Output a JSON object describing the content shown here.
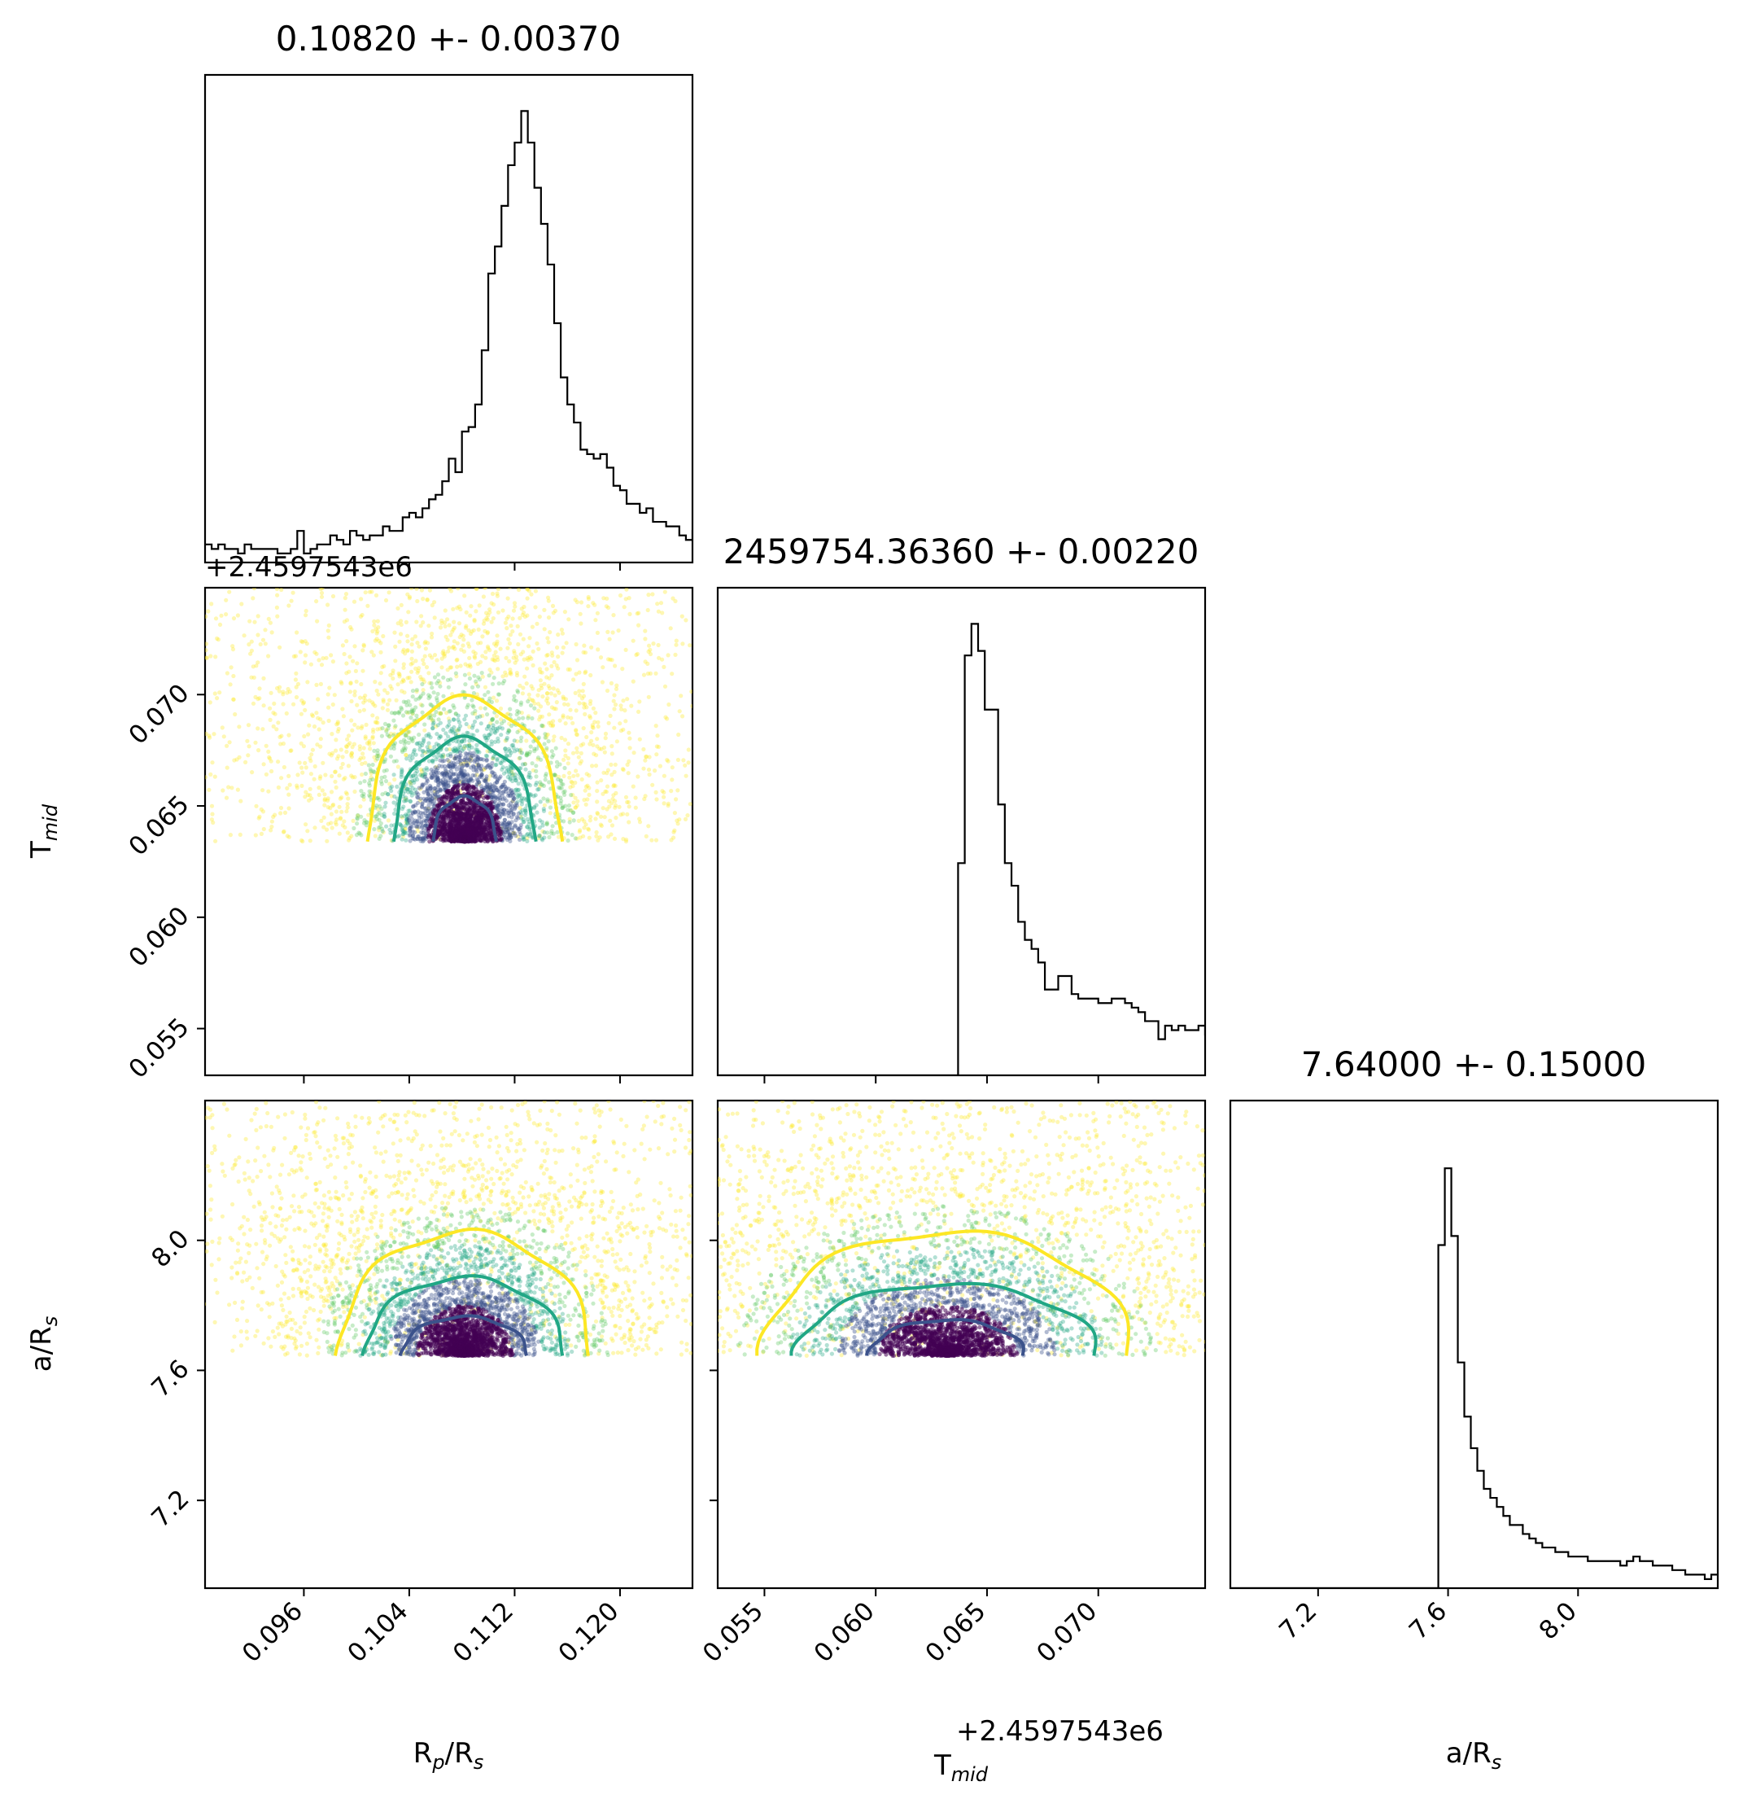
{
  "figure": {
    "type": "corner_plot",
    "parameters": [
      {
        "key": "rp",
        "label_main": "R",
        "label_sub": "p",
        "label_tail": "/R",
        "label_sub2": "s",
        "range": [
          0.0885,
          0.1255
        ],
        "ticks": [
          "0.096",
          "0.104",
          "0.112",
          "0.120"
        ],
        "tick_values": [
          0.096,
          0.104,
          0.112,
          0.12
        ]
      },
      {
        "key": "tmid",
        "label_main": "T",
        "label_sub": "mid",
        "label_tail": "",
        "label_sub2": "",
        "range": [
          0.0529,
          0.0748
        ],
        "ticks": [
          "0.055",
          "0.060",
          "0.065",
          "0.070"
        ],
        "tick_values": [
          0.055,
          0.06,
          0.065,
          0.07
        ],
        "offset_label": "+2.4597543e6"
      },
      {
        "key": "ars",
        "label_main": "a/R",
        "label_sub": "s",
        "label_tail": "",
        "label_sub2": "",
        "range": [
          6.93,
          8.43
        ],
        "ticks": [
          "7.2",
          "7.6",
          "8.0"
        ],
        "tick_values": [
          7.2,
          7.6,
          8.0
        ]
      }
    ],
    "titles": [
      "0.10820 +- 0.00370",
      "2459754.36360 +- 0.00220",
      "7.64000 +- 0.15000"
    ]
  },
  "chart_data": [
    {
      "type": "histogram",
      "panel": "rp-marginal",
      "title": "0.10820 +- 0.00370",
      "xlabel": "",
      "xlim": [
        0.0885,
        0.1255
      ],
      "ylim": [
        0,
        1.08
      ],
      "bins_x_start": 0.0885,
      "bin_width": 0.0005,
      "counts": [
        0.04,
        0.03,
        0.04,
        0.03,
        0.03,
        0.02,
        0.04,
        0.03,
        0.03,
        0.03,
        0.03,
        0.02,
        0.02,
        0.03,
        0.07,
        0.02,
        0.03,
        0.04,
        0.04,
        0.06,
        0.05,
        0.04,
        0.07,
        0.06,
        0.05,
        0.06,
        0.06,
        0.08,
        0.07,
        0.07,
        0.1,
        0.11,
        0.1,
        0.12,
        0.14,
        0.15,
        0.18,
        0.23,
        0.2,
        0.29,
        0.3,
        0.35,
        0.47,
        0.64,
        0.7,
        0.79,
        0.88,
        0.93,
        1.0,
        0.93,
        0.83,
        0.75,
        0.66,
        0.53,
        0.41,
        0.35,
        0.31,
        0.25,
        0.24,
        0.23,
        0.24,
        0.21,
        0.17,
        0.16,
        0.13,
        0.13,
        0.11,
        0.12,
        0.09,
        0.09,
        0.08,
        0.08,
        0.06,
        0.05,
        0.07,
        0.06,
        0.06,
        0.04,
        0.03,
        0.04,
        0.04,
        0.03,
        0.05,
        0.04,
        0.03,
        0.04,
        0.03,
        0.03,
        0.02,
        0.02,
        0.03,
        0.02,
        0.02,
        0.03,
        0.03
      ]
    },
    {
      "type": "histogram",
      "panel": "tmid-marginal",
      "title": "2459754.36360 +- 0.00220",
      "xlim": [
        0.0529,
        0.0748
      ],
      "ylim": [
        0,
        1.08
      ],
      "bins_x_start": 0.0529,
      "bin_width": 0.0003,
      "counts": [
        0,
        0,
        0,
        0,
        0,
        0,
        0,
        0,
        0,
        0,
        0,
        0,
        0,
        0,
        0,
        0,
        0,
        0,
        0,
        0,
        0,
        0,
        0,
        0,
        0,
        0,
        0,
        0,
        0,
        0,
        0,
        0,
        0,
        0,
        0,
        0,
        0.47,
        0.93,
        1.0,
        0.94,
        0.81,
        0.81,
        0.6,
        0.47,
        0.42,
        0.34,
        0.3,
        0.28,
        0.25,
        0.19,
        0.19,
        0.22,
        0.22,
        0.18,
        0.17,
        0.17,
        0.17,
        0.16,
        0.16,
        0.17,
        0.17,
        0.16,
        0.15,
        0.14,
        0.12,
        0.12,
        0.08,
        0.11,
        0.1,
        0.11,
        0.1,
        0.1,
        0.11,
        0.09,
        0.09,
        0.1,
        0.08,
        0.09,
        0.09,
        0.08,
        0.09,
        0.06,
        0.04
      ]
    },
    {
      "type": "histogram",
      "panel": "ars-marginal",
      "title": "7.64000 +- 0.15000",
      "xlim": [
        6.93,
        8.43
      ],
      "ylim": [
        0,
        1.08
      ],
      "bins_x_start": 6.93,
      "bin_width": 0.02,
      "counts": [
        0,
        0,
        0,
        0,
        0,
        0,
        0,
        0,
        0,
        0,
        0,
        0,
        0,
        0,
        0,
        0,
        0,
        0,
        0,
        0,
        0,
        0,
        0,
        0,
        0,
        0,
        0,
        0,
        0,
        0,
        0,
        0,
        0.76,
        0.93,
        0.78,
        0.5,
        0.38,
        0.31,
        0.26,
        0.22,
        0.2,
        0.18,
        0.16,
        0.14,
        0.14,
        0.12,
        0.11,
        0.1,
        0.09,
        0.09,
        0.08,
        0.08,
        0.07,
        0.07,
        0.07,
        0.06,
        0.06,
        0.06,
        0.06,
        0.06,
        0.05,
        0.06,
        0.07,
        0.06,
        0.06,
        0.05,
        0.05,
        0.05,
        0.04,
        0.04,
        0.03,
        0.03,
        0.03,
        0.02,
        0.03
      ]
    },
    {
      "type": "scatter_contour",
      "panel": "tmid-vs-rp",
      "x_param": "rp",
      "y_param": "tmid",
      "xlim": [
        0.0885,
        0.1255
      ],
      "ylim": [
        0.0529,
        0.0748
      ],
      "center": [
        0.1082,
        0.0636
      ],
      "floor": 0.0634,
      "contours": [
        {
          "level": "inner",
          "color": "#3b528b",
          "rx": 0.0024,
          "ry": 0.002
        },
        {
          "level": "middle",
          "color": "#21a785",
          "rx": 0.0054,
          "ry": 0.0046
        },
        {
          "level": "outer",
          "color": "#fde725",
          "rx": 0.0074,
          "ry": 0.0064
        }
      ]
    },
    {
      "type": "scatter_contour",
      "panel": "ars-vs-rp",
      "x_param": "rp",
      "y_param": "ars",
      "xlim": [
        0.0885,
        0.1255
      ],
      "ylim": [
        6.93,
        8.43
      ],
      "center": [
        0.1082,
        7.645
      ],
      "floor": 7.645,
      "contours": [
        {
          "level": "inner",
          "color": "#3b528b",
          "rx": 0.0048,
          "ry": 0.12
        },
        {
          "level": "middle",
          "color": "#21a785",
          "rx": 0.0076,
          "ry": 0.24
        },
        {
          "level": "outer",
          "color": "#fde725",
          "rx": 0.0096,
          "ry": 0.38
        }
      ]
    },
    {
      "type": "scatter_contour",
      "panel": "ars-vs-tmid",
      "x_param": "tmid",
      "y_param": "ars",
      "xlim": [
        0.0529,
        0.0748
      ],
      "ylim": [
        6.93,
        8.43
      ],
      "center": [
        0.0632,
        7.645
      ],
      "floor": 7.645,
      "contours": [
        {
          "level": "inner",
          "color": "#3b528b",
          "rx": 0.0035,
          "ry": 0.11
        },
        {
          "level": "middle",
          "color": "#21a785",
          "rx": 0.0068,
          "ry": 0.22
        },
        {
          "level": "outer",
          "color": "#fde725",
          "rx": 0.0083,
          "ry": 0.38
        }
      ]
    }
  ],
  "colors": {
    "dense": "#440154",
    "mid_dense": "#3b528b",
    "teal": "#21a785",
    "green": "#5ec962",
    "yellow": "#fde725",
    "hist": "#000000"
  }
}
